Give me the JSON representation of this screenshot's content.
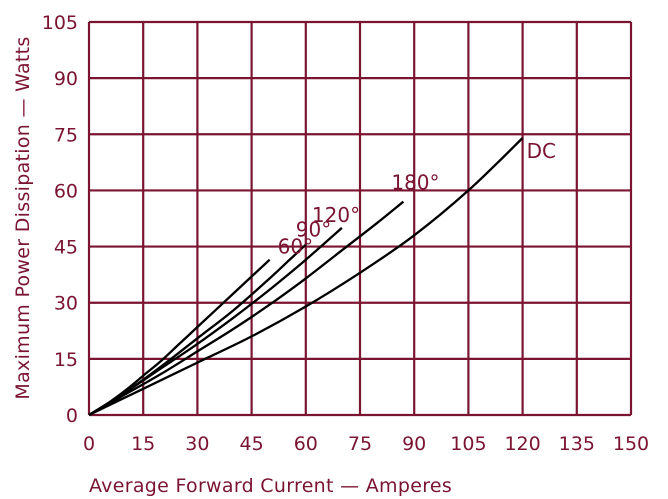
{
  "chart_data": {
    "type": "line",
    "title": "",
    "xlabel": "Average Forward Current — Amperes",
    "ylabel": "Maximum Power Dissipation — Watts",
    "xlim": [
      0,
      150
    ],
    "ylim": [
      0,
      105
    ],
    "xticks": [
      "0",
      "15",
      "30",
      "45",
      "60",
      "75",
      "90",
      "105",
      "120",
      "135",
      "150"
    ],
    "yticks": [
      "0",
      "15",
      "30",
      "45",
      "60",
      "75",
      "90",
      "105"
    ],
    "grid": true,
    "colors": {
      "grid": "#7a1430",
      "text": "#7a1430",
      "curves": "#000000"
    },
    "series": [
      {
        "name": "60°",
        "x": [
          0,
          5,
          10,
          15,
          20,
          25,
          30,
          35,
          40,
          45,
          50
        ],
        "y": [
          0,
          3,
          6.5,
          10.5,
          14.5,
          19,
          23.5,
          28,
          32.5,
          37,
          41.5
        ]
      },
      {
        "name": "90°",
        "x": [
          0,
          10,
          20,
          30,
          40,
          50,
          55,
          60
        ],
        "y": [
          0,
          6,
          13,
          20.5,
          28,
          36.5,
          41,
          45.5
        ]
      },
      {
        "name": "120°",
        "x": [
          0,
          10,
          20,
          30,
          40,
          50,
          60,
          70
        ],
        "y": [
          0,
          6,
          12.5,
          19,
          26,
          33.5,
          41.5,
          50
        ]
      },
      {
        "name": "180°",
        "x": [
          0,
          10,
          20,
          30,
          40,
          50,
          60,
          70,
          80,
          87
        ],
        "y": [
          0,
          5.5,
          11,
          17,
          23,
          29.5,
          36.5,
          44,
          51.5,
          57
        ]
      },
      {
        "name": "DC",
        "x": [
          0,
          15,
          30,
          45,
          60,
          75,
          90,
          105,
          120
        ],
        "y": [
          0,
          7,
          14,
          21,
          29,
          38,
          48,
          60,
          74
        ]
      }
    ]
  }
}
